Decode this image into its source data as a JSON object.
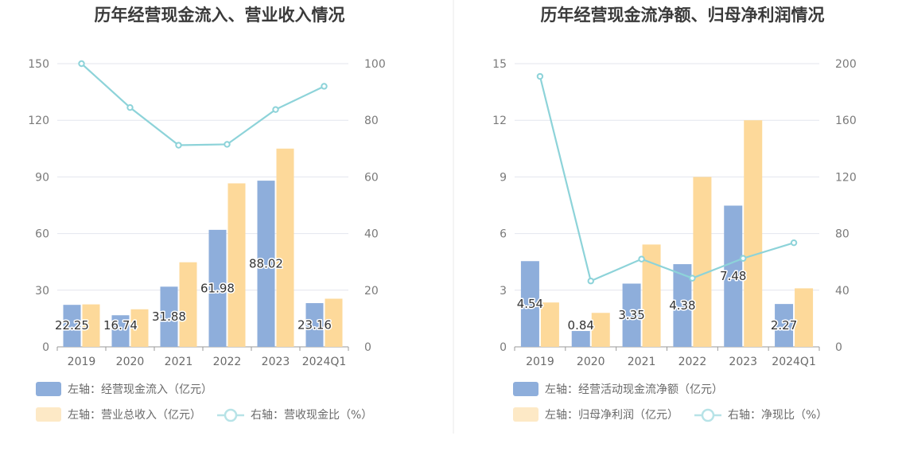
{
  "chart_data": [
    {
      "type": "bar",
      "title": "历年经营现金流入、营业收入情况",
      "categories": [
        "2019",
        "2020",
        "2021",
        "2022",
        "2023",
        "2024Q1"
      ],
      "left_axis": {
        "ylim": [
          0,
          150
        ],
        "ticks": [
          "0",
          "30",
          "60",
          "90",
          "120",
          "150"
        ]
      },
      "right_axis": {
        "ylim": [
          0,
          100
        ],
        "ticks": [
          "0",
          "20",
          "40",
          "60",
          "80",
          "100"
        ]
      },
      "series": [
        {
          "name": "左轴：经营现金流入（亿元）",
          "kind": "bar",
          "axis": "left",
          "color": "#8eaedb",
          "values": [
            22.25,
            16.74,
            31.88,
            61.98,
            88.02,
            23.16
          ],
          "labels": [
            "22.25",
            "16.74",
            "31.88",
            "61.98",
            "88.02",
            "23.16"
          ]
        },
        {
          "name": "左轴：营业总收入（亿元）",
          "kind": "bar",
          "axis": "left",
          "color": "#fdd99a",
          "values": [
            22.5,
            19.9,
            44.8,
            86.6,
            105.0,
            25.5
          ]
        },
        {
          "name": "右轴：营收现金比（%）",
          "kind": "line",
          "axis": "right",
          "color": "#8dd3d9",
          "values": [
            100.0,
            84.5,
            71.2,
            71.5,
            83.8,
            92.0
          ]
        }
      ],
      "legend": "bottom-left"
    },
    {
      "type": "bar",
      "title": "历年经营现金流净额、归母净利润情况",
      "categories": [
        "2019",
        "2020",
        "2021",
        "2022",
        "2023",
        "2024Q1"
      ],
      "left_axis": {
        "ylim": [
          0,
          15
        ],
        "ticks": [
          "0",
          "3",
          "6",
          "9",
          "12",
          "15"
        ]
      },
      "right_axis": {
        "ylim": [
          0,
          200
        ],
        "ticks": [
          "0",
          "40",
          "80",
          "120",
          "160",
          "200"
        ]
      },
      "series": [
        {
          "name": "左轴：经营活动现金流净额（亿元）",
          "kind": "bar",
          "axis": "left",
          "color": "#8eaedb",
          "values": [
            4.54,
            0.84,
            3.35,
            4.38,
            7.48,
            2.27
          ],
          "labels": [
            "4.54",
            "0.84",
            "3.35",
            "4.38",
            "7.48",
            "2.27"
          ]
        },
        {
          "name": "左轴：归母净利润（亿元）",
          "kind": "bar",
          "axis": "left",
          "color": "#fdd99a",
          "values": [
            2.35,
            1.8,
            5.42,
            9.0,
            12.0,
            3.1
          ]
        },
        {
          "name": "右轴：净现比（%）",
          "kind": "line",
          "axis": "right",
          "color": "#8dd3d9",
          "values": [
            191.0,
            46.5,
            62.0,
            48.5,
            62.5,
            73.5
          ]
        }
      ],
      "legend": "bottom-left"
    }
  ]
}
